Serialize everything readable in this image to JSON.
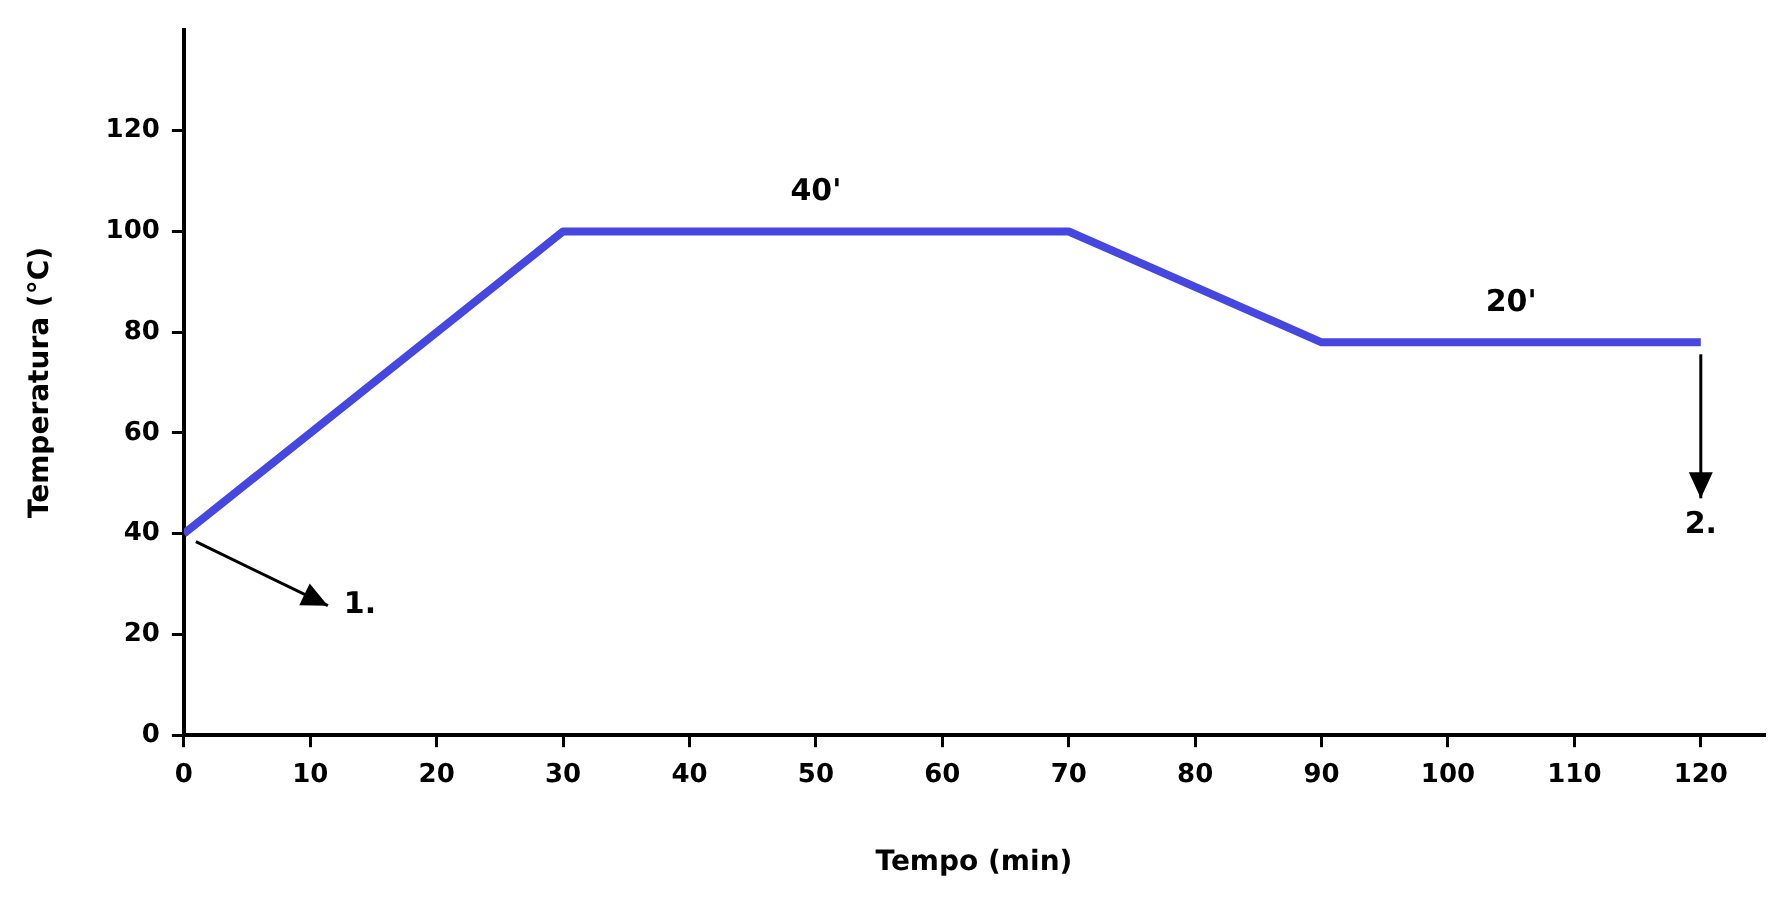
{
  "chart_data": {
    "type": "line",
    "xlabel": "Tempo (min)",
    "ylabel": "Temperatura (°C)",
    "x": [
      0,
      30,
      70,
      90,
      120
    ],
    "series": [
      {
        "color": "#4646e0",
        "values": [
          40,
          100,
          100,
          78,
          78
        ]
      }
    ],
    "xlim": [
      0,
      125
    ],
    "xticks": [
      0,
      10,
      20,
      30,
      40,
      50,
      60,
      70,
      80,
      90,
      100,
      110,
      120
    ],
    "ylim": [
      0,
      140
    ],
    "yticks": [
      0,
      20,
      40,
      60,
      80,
      100,
      120
    ],
    "grid": false,
    "legend": false,
    "marker": "none",
    "line_style": "solid",
    "annotations": [
      {
        "text": "40'",
        "x": 50,
        "y": 100
      },
      {
        "text": "20'",
        "x": 105,
        "y": 78
      },
      {
        "text": "1.",
        "x": 0,
        "y": 40
      },
      {
        "text": "2.",
        "x": 120,
        "y": 78
      }
    ]
  }
}
